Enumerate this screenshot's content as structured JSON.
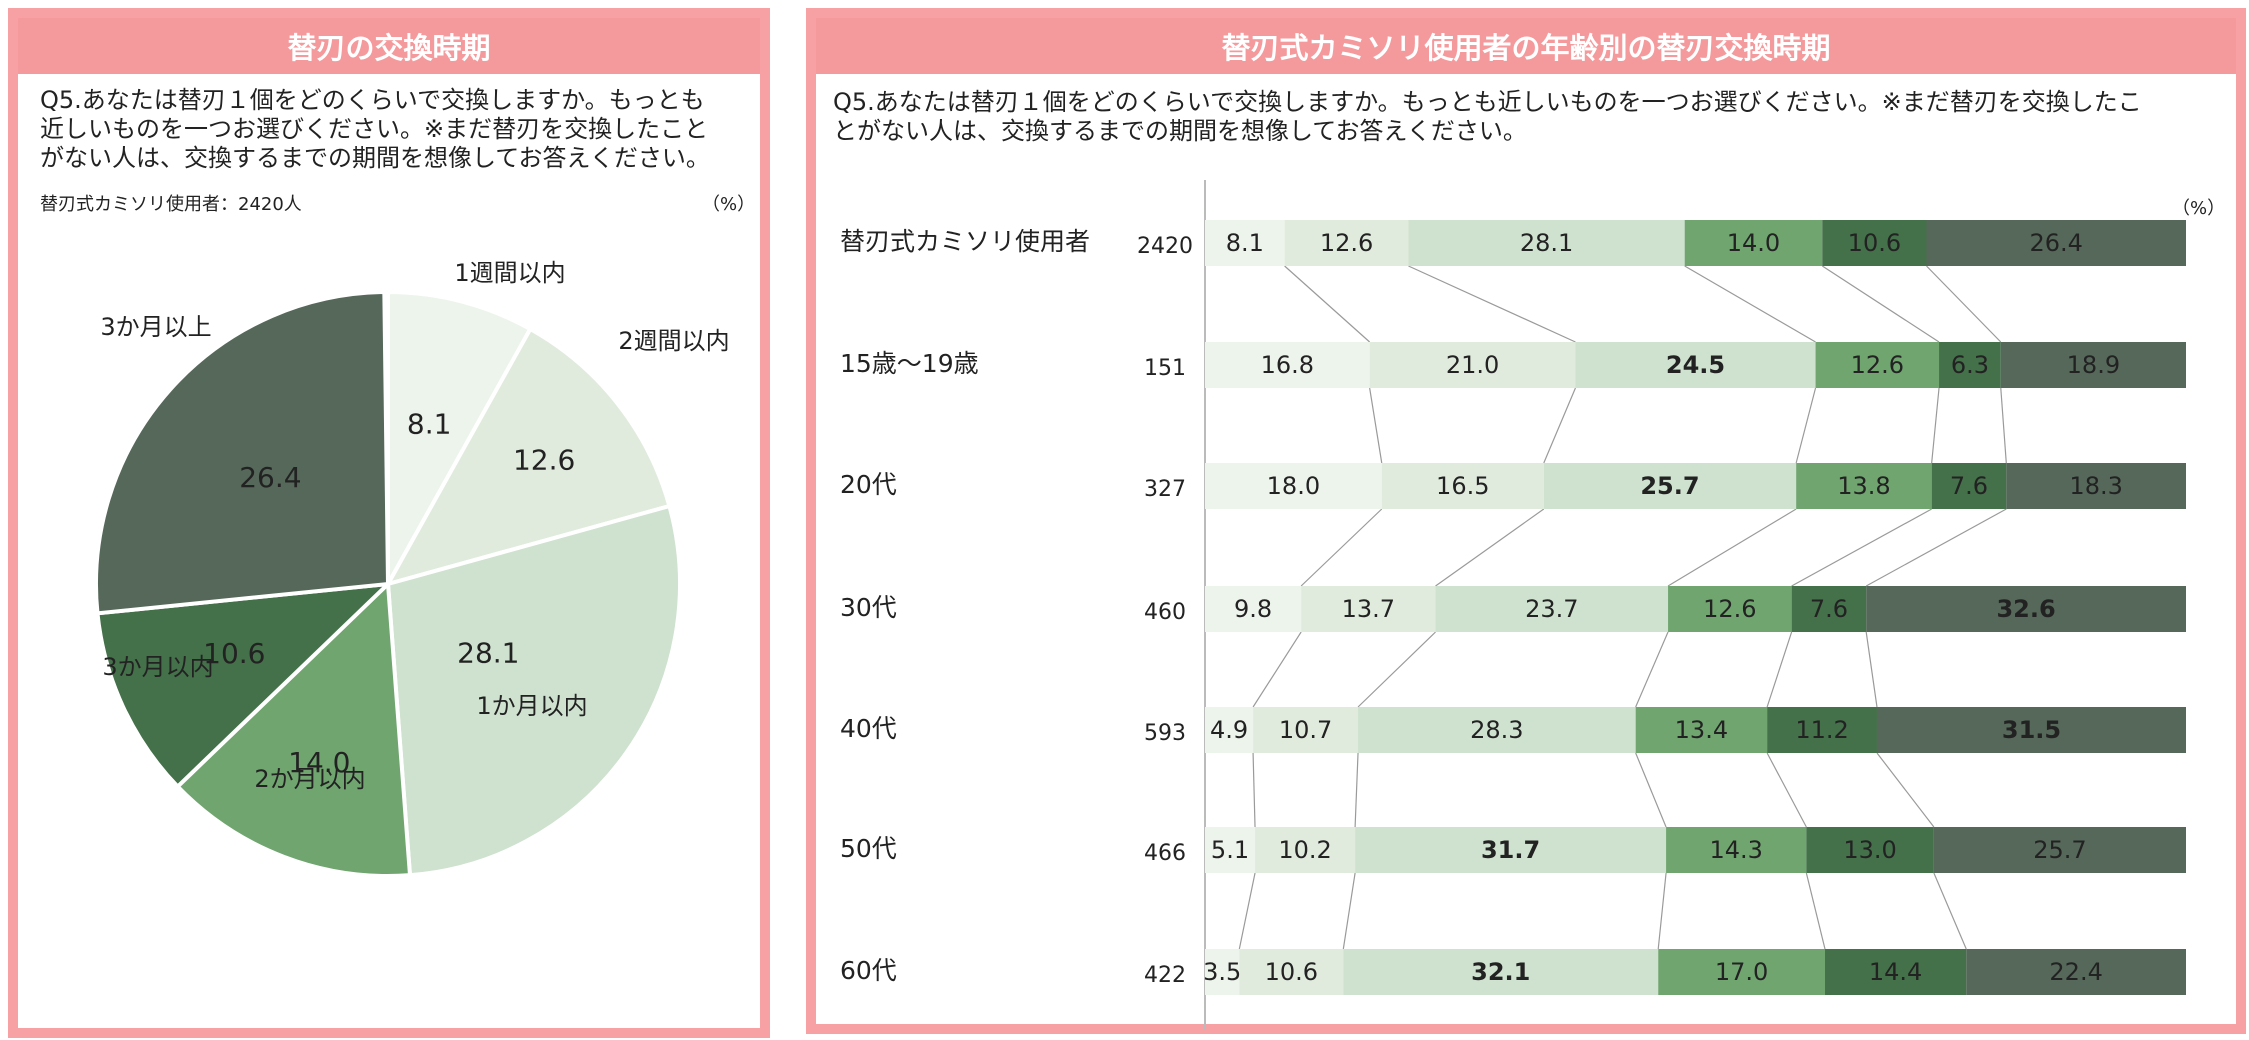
{
  "left": {
    "title": "替刃の交換時期",
    "question": "Q5.あなたは替刃１個をどのくらいで交換しますか。もっとも\n近しいものを一つお選びください。※まだ替刃を交換したこと\nがない人は、交換するまでの期間を想像してお答えください。",
    "base_note": "替刃式カミソリ使用者：2420人",
    "unit": "（%）"
  },
  "right": {
    "title": "替刃式カミソリ使用者の年齢別の替刃交換時期",
    "question": "Q5.あなたは替刃１個をどのくらいで交換しますか。もっとも近しいものを一つお選びください。※まだ替刃を交換したこ\nとがない人は、交換するまでの期間を想像してお答えください。",
    "unit": "（%）"
  },
  "colors": [
    "#edf4ec",
    "#e0ebde",
    "#cfe1cf",
    "#70a570",
    "#44704a",
    "#56685a"
  ],
  "chart_data": [
    {
      "type": "pie",
      "categories": [
        "1週間以内",
        "2週間以内",
        "1か月以内",
        "2か月以内",
        "3か月以内",
        "3か月以上"
      ],
      "values": [
        8.1,
        12.6,
        28.1,
        14.0,
        10.6,
        26.4
      ],
      "title": "替刃の交換時期",
      "unit": "%"
    },
    {
      "type": "bar",
      "orientation": "horizontal",
      "stacked": true,
      "categories": [
        "替刃式カミソリ使用者",
        "15歳～19歳",
        "20代",
        "30代",
        "40代",
        "50代",
        "60代"
      ],
      "n": [
        2420,
        151,
        327,
        460,
        593,
        466,
        422
      ],
      "series": [
        {
          "values": [
            8.1,
            16.8,
            18.0,
            9.8,
            4.9,
            5.1,
            3.5
          ]
        },
        {
          "values": [
            12.6,
            21.0,
            16.5,
            13.7,
            10.7,
            10.2,
            10.6
          ]
        },
        {
          "values": [
            28.1,
            24.5,
            25.7,
            23.7,
            28.3,
            31.7,
            32.1
          ]
        },
        {
          "values": [
            14.0,
            12.6,
            13.8,
            12.6,
            13.4,
            14.3,
            17.0
          ]
        },
        {
          "values": [
            10.6,
            6.3,
            7.6,
            7.6,
            11.2,
            13.0,
            14.4
          ]
        },
        {
          "values": [
            26.4,
            18.9,
            18.3,
            32.6,
            31.5,
            25.7,
            22.4
          ]
        }
      ],
      "bold": [
        [
          false,
          false,
          false,
          false,
          false,
          false
        ],
        [
          false,
          false,
          true,
          false,
          false,
          false
        ],
        [
          false,
          false,
          true,
          false,
          false,
          false
        ],
        [
          false,
          false,
          false,
          false,
          false,
          true
        ],
        [
          false,
          false,
          false,
          false,
          false,
          true
        ],
        [
          false,
          false,
          true,
          false,
          false,
          false
        ],
        [
          false,
          false,
          true,
          false,
          false,
          false
        ]
      ],
      "xlim": [
        0,
        100
      ],
      "unit": "%",
      "title": "替刃式カミソリ使用者の年齢別の替刃交換時期"
    }
  ]
}
